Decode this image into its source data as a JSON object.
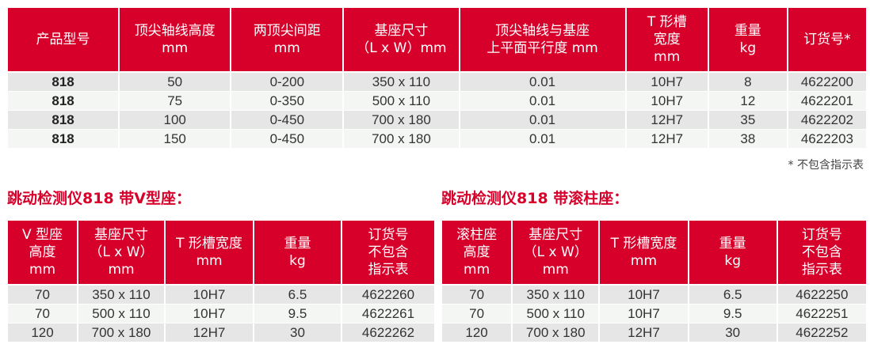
{
  "main_table": {
    "headers": [
      "产品型号",
      "顶尖轴线高度\nmm",
      "两顶尖间距\nmm",
      "基座尺寸\n（L x W）mm",
      "顶尖轴线与基座\n上平面平行度 mm",
      "T 形槽\n宽度\nmm",
      "重量\nkg",
      "订货号*"
    ],
    "rows": [
      [
        "818",
        "50",
        "0-200",
        "350 x 110",
        "0.01",
        "10H7",
        "8",
        "4622200"
      ],
      [
        "818",
        "75",
        "0-350",
        "500 x 110",
        "0.01",
        "10H7",
        "12",
        "4622201"
      ],
      [
        "818",
        "100",
        "0-450",
        "700 x 180",
        "0.01",
        "12H7",
        "35",
        "4622202"
      ],
      [
        "818",
        "150",
        "0-450",
        "700 x 180",
        "0.01",
        "12H7",
        "38",
        "4622203"
      ]
    ]
  },
  "footnote": "* 不包含指示表",
  "v_section": {
    "title": "跳动检测仪818 带V型座：",
    "headers": [
      "V 型座\n高度\nmm",
      "基座尺寸\n（L x W）\nmm",
      "T 形槽宽度\nmm",
      "重量\nkg",
      "订货号\n不包含\n指示表"
    ],
    "rows": [
      [
        "70",
        "350 x 110",
        "10H7",
        "6.5",
        "4622260"
      ],
      [
        "70",
        "500 x 110",
        "10H7",
        "9.5",
        "4622261"
      ],
      [
        "120",
        "700 x 180",
        "12H7",
        "30",
        "4622262"
      ]
    ]
  },
  "roller_section": {
    "title": "跳动检测仪818 带滚柱座：",
    "headers": [
      "滚柱座\n高度\nmm",
      "基座尺寸\n（L x W）\nmm",
      "T 形槽宽度\nmm",
      "重量\nkg",
      "订货号\n不包含\n指示表"
    ],
    "rows": [
      [
        "70",
        "350 x 110",
        "10H7",
        "6.5",
        "4622250"
      ],
      [
        "70",
        "500 x 110",
        "10H7",
        "9.5",
        "4622251"
      ],
      [
        "120",
        "700 x 180",
        "12H7",
        "30",
        "4622252"
      ]
    ]
  },
  "colors": {
    "accent": "#d7002a",
    "row_dark": "#e6e6e6",
    "row_light": "#f4f6f4"
  }
}
